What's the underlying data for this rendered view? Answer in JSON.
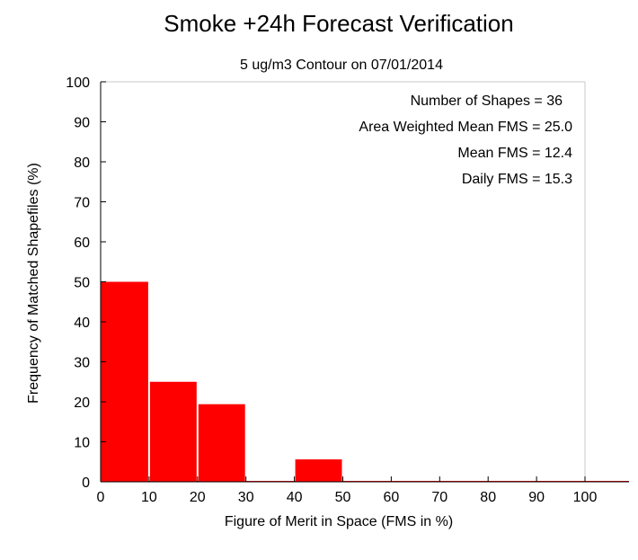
{
  "chart_data": {
    "type": "bar",
    "title": "Smoke +24h Forecast Verification",
    "subtitle": "5 ug/m3 Contour on 07/01/2014",
    "xlabel": "Figure of Merit in Space (FMS in %)",
    "ylabel": "Frequency of Matched Shapefiles (%)",
    "xlim": [
      0,
      100
    ],
    "ylim": [
      0,
      100
    ],
    "xticks": [
      0,
      10,
      20,
      30,
      40,
      50,
      60,
      70,
      80,
      90,
      100
    ],
    "yticks": [
      0,
      10,
      20,
      30,
      40,
      50,
      60,
      70,
      80,
      90,
      100
    ],
    "bins": [
      {
        "from": 0,
        "to": 10,
        "value": 50
      },
      {
        "from": 10,
        "to": 20,
        "value": 25
      },
      {
        "from": 20,
        "to": 30,
        "value": 19.4
      },
      {
        "from": 30,
        "to": 40,
        "value": 0
      },
      {
        "from": 40,
        "to": 50,
        "value": 5.6
      },
      {
        "from": 50,
        "to": 60,
        "value": 0
      },
      {
        "from": 60,
        "to": 70,
        "value": 0
      },
      {
        "from": 70,
        "to": 80,
        "value": 0
      },
      {
        "from": 80,
        "to": 90,
        "value": 0
      },
      {
        "from": 90,
        "to": 100,
        "value": 0
      }
    ],
    "bar_color": "#ff0000",
    "grid": false,
    "annotations": [
      "Number of Shapes = 36",
      "Area Weighted Mean FMS = 25.0",
      "Mean FMS = 12.4",
      "Daily FMS = 15.3"
    ]
  }
}
